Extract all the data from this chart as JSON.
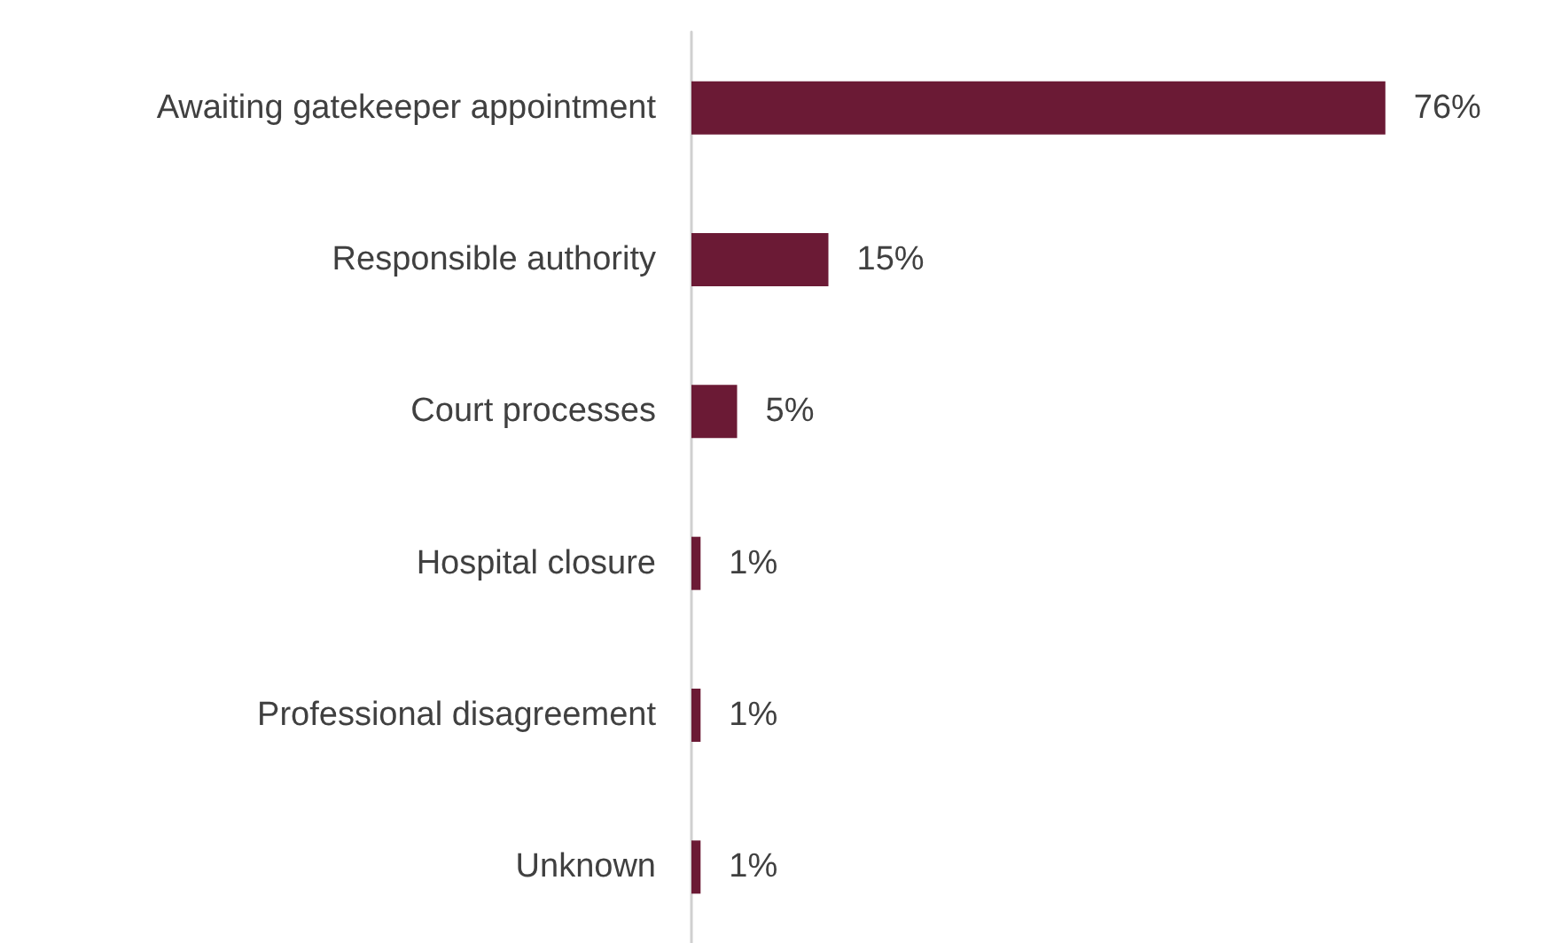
{
  "chart_data": {
    "type": "bar",
    "orientation": "horizontal",
    "categories": [
      "Awaiting gatekeeper appointment",
      "Responsible authority",
      "Court processes",
      "Hospital closure",
      "Professional disagreement",
      "Unknown"
    ],
    "values": [
      76,
      15,
      5,
      1,
      1,
      1
    ],
    "value_labels": [
      "76%",
      "15%",
      "5%",
      "1%",
      "1%",
      "1%"
    ],
    "color": "#6b1a35",
    "grid": false
  }
}
